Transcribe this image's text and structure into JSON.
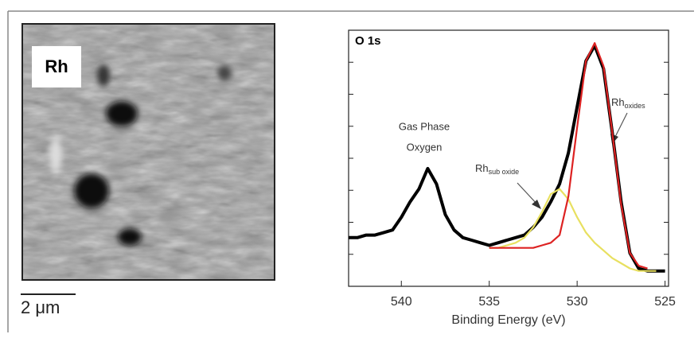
{
  "image": {
    "label": "Rh",
    "scale_bar": "2 μm"
  },
  "chart_data": {
    "type": "line",
    "title": "O 1s",
    "x_label": "Binding Energy (eV)",
    "annotations": [
      {
        "lines": [
          "Gas Phase",
          "Oxygen"
        ]
      },
      {
        "main": "Rh",
        "sub": "sub oxide"
      },
      {
        "main": "Rh",
        "sub": "oxides"
      }
    ],
    "x": [
      543,
      542.5,
      542,
      541.5,
      541,
      540.5,
      540,
      539.5,
      539,
      538.5,
      538,
      537.5,
      537,
      536.5,
      536,
      535.5,
      535,
      534.5,
      534,
      533.5,
      533,
      532.5,
      532,
      531.5,
      531,
      530.5,
      530,
      529.5,
      529,
      528.5,
      528,
      527.5,
      527,
      526.5,
      526,
      525.5,
      525
    ],
    "series": [
      {
        "color": "#000000",
        "values": [
          19,
          19,
          20,
          20,
          21,
          22,
          27,
          33,
          38,
          46,
          40,
          28,
          22,
          19,
          18,
          17,
          16,
          17,
          18,
          19,
          20,
          23,
          27,
          33,
          40,
          52,
          70,
          88,
          94,
          85,
          60,
          33,
          13,
          7,
          6,
          6,
          6
        ]
      },
      {
        "color": "#e8e060",
        "values": [
          null,
          null,
          null,
          null,
          null,
          null,
          null,
          null,
          null,
          null,
          null,
          null,
          null,
          null,
          null,
          null,
          15,
          15,
          16,
          17,
          19,
          23,
          29,
          36,
          38,
          34,
          27,
          21,
          17,
          14,
          11,
          9,
          7,
          6,
          6,
          6,
          null
        ]
      },
      {
        "color": "#dd2222",
        "values": [
          null,
          null,
          null,
          null,
          null,
          null,
          null,
          null,
          null,
          null,
          null,
          null,
          null,
          null,
          null,
          null,
          15,
          15,
          15,
          15,
          15,
          15,
          16,
          17,
          20,
          35,
          62,
          88,
          95,
          86,
          60,
          32,
          13,
          8,
          7,
          null,
          null
        ]
      }
    ],
    "xlim": [
      543,
      524.8
    ],
    "xticks": [
      540,
      535,
      530,
      525
    ],
    "ylim": [
      0,
      100
    ],
    "yticks": [
      0,
      12.5,
      25,
      37.5,
      50,
      62.5,
      75,
      87.5,
      100
    ]
  }
}
